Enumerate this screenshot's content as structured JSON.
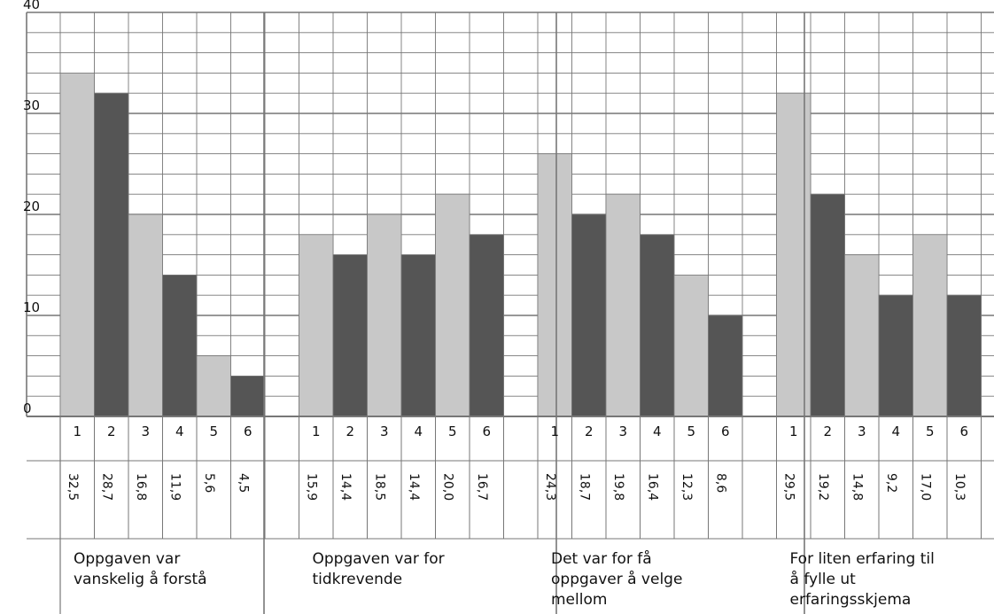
{
  "chart_data": {
    "type": "bar",
    "ylim": [
      0,
      40
    ],
    "y_ticks": [
      "0",
      "10",
      "20",
      "30",
      "40"
    ],
    "grid": true,
    "colors": {
      "light": "#c8c8c8",
      "dark": "#555555",
      "grid": "#777777"
    },
    "groups": [
      {
        "label_lines": [
          "Oppgaven var",
          "vanskelig å forstå"
        ],
        "categories": [
          "1",
          "2",
          "3",
          "4",
          "5",
          "6"
        ],
        "values": [
          32.5,
          28.7,
          16.8,
          11.9,
          5.6,
          4.5
        ],
        "value_labels": [
          "32,5",
          "28,7",
          "16,8",
          "11,9",
          "5,6",
          "4,5"
        ],
        "bar_heights": [
          34,
          32,
          20,
          14,
          6,
          4
        ]
      },
      {
        "label_lines": [
          "Oppgaven var for",
          "tidkrevende"
        ],
        "categories": [
          "1",
          "2",
          "3",
          "4",
          "5",
          "6"
        ],
        "values": [
          15.9,
          14.4,
          18.5,
          14.4,
          20.0,
          16.7
        ],
        "value_labels": [
          "15,9",
          "14,4",
          "18,5",
          "14,4",
          "20,0",
          "16,7"
        ],
        "bar_heights": [
          18,
          16,
          20,
          16,
          22,
          18
        ]
      },
      {
        "label_lines": [
          "Det var for få",
          "oppgaver å velge",
          "mellom"
        ],
        "categories": [
          "1",
          "2",
          "3",
          "4",
          "5",
          "6"
        ],
        "values": [
          24.3,
          18.7,
          19.8,
          16.4,
          12.3,
          8.6
        ],
        "value_labels": [
          "24,3",
          "18,7",
          "19,8",
          "16,4",
          "12,3",
          "8,6"
        ],
        "bar_heights": [
          26,
          20,
          22,
          18,
          14,
          10
        ]
      },
      {
        "label_lines": [
          "For liten erfaring til",
          "å fylle ut",
          "erfaringsskjema"
        ],
        "categories": [
          "1",
          "2",
          "3",
          "4",
          "5",
          "6"
        ],
        "values": [
          29.5,
          19.2,
          14.8,
          9.2,
          17.0,
          10.3
        ],
        "value_labels": [
          "29,5",
          "19,2",
          "14,8",
          "9,2",
          "17,0",
          "10,3"
        ],
        "bar_heights": [
          32,
          22,
          16,
          12,
          18,
          12
        ]
      }
    ]
  }
}
